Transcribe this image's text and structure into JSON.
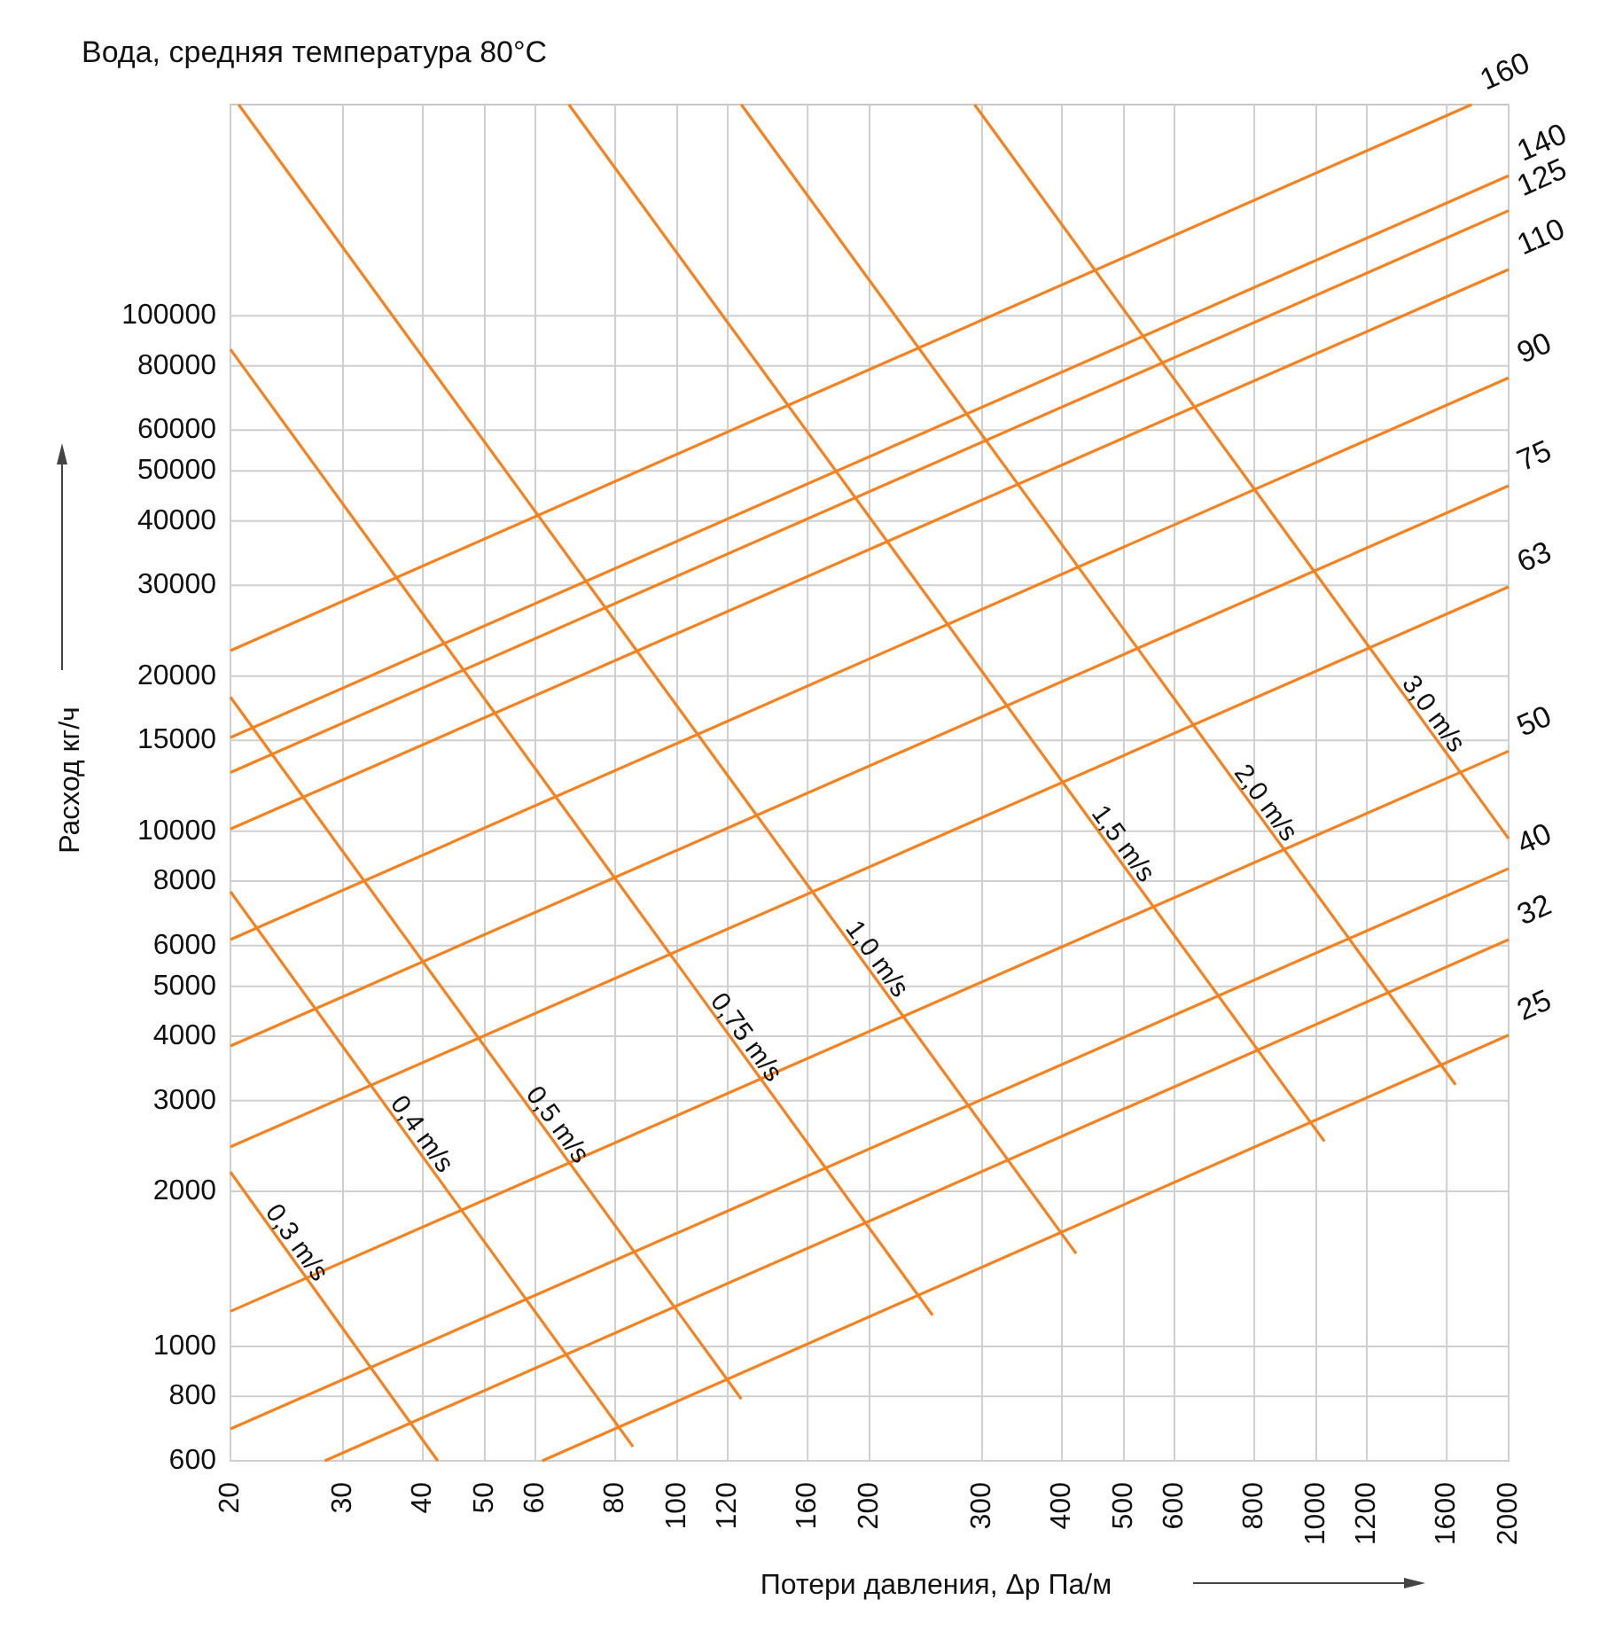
{
  "chart_data": {
    "type": "line",
    "title": "Вода, средняя температура 80°C",
    "xlabel": "Потери давления, Δp Па/м",
    "ylabel": "Расход кг/ч",
    "log": "xy",
    "grid": true,
    "marker": "none",
    "line_style": "solid",
    "xlim": [
      20,
      2000
    ],
    "ylim": [
      600,
      257000
    ],
    "xticks": [
      20,
      30,
      40,
      50,
      60,
      80,
      100,
      120,
      160,
      200,
      300,
      400,
      500,
      600,
      800,
      1000,
      1200,
      1600,
      2000
    ],
    "yticks": [
      600,
      800,
      1000,
      2000,
      3000,
      4000,
      5000,
      6000,
      8000,
      10000,
      15000,
      20000,
      30000,
      40000,
      50000,
      60000,
      80000,
      100000
    ],
    "series": [
      {
        "name": "160",
        "color": "#f5821f",
        "x": [
          20,
          1750
        ],
        "values": [
          22400,
          257000
        ]
      },
      {
        "name": "140",
        "color": "#f5821f",
        "x": [
          20,
          2000
        ],
        "values": [
          15200,
          187000
        ]
      },
      {
        "name": "125",
        "color": "#f5821f",
        "x": [
          20,
          2000
        ],
        "values": [
          13000,
          160000
        ]
      },
      {
        "name": "110",
        "color": "#f5821f",
        "x": [
          20,
          2000
        ],
        "values": [
          10100,
          123000
        ]
      },
      {
        "name": "90",
        "color": "#f5821f",
        "x": [
          20,
          2000
        ],
        "values": [
          6160,
          75800
        ]
      },
      {
        "name": "75",
        "color": "#f5821f",
        "x": [
          20,
          2000
        ],
        "values": [
          3830,
          46800
        ]
      },
      {
        "name": "63",
        "color": "#f5821f",
        "x": [
          20,
          2000
        ],
        "values": [
          2440,
          29800
        ]
      },
      {
        "name": "50",
        "color": "#f5821f",
        "x": [
          20,
          2000
        ],
        "values": [
          1170,
          14300
        ]
      },
      {
        "name": "40",
        "color": "#f5821f",
        "x": [
          20,
          2000
        ],
        "values": [
          692,
          8460
        ]
      },
      {
        "name": "32",
        "color": "#f5821f",
        "x": [
          28.1,
          2000
        ],
        "values": [
          600,
          6160
        ]
      },
      {
        "name": "25",
        "color": "#f5821f",
        "x": [
          61.5,
          2000
        ],
        "values": [
          600,
          4020
        ]
      },
      {
        "name": "0,3 m/s",
        "color": "#f5821f",
        "x": [
          20,
          42.2
        ],
        "values": [
          2180,
          600
        ]
      },
      {
        "name": "0,4 m/s",
        "color": "#f5821f",
        "x": [
          20,
          85.3
        ],
        "values": [
          7630,
          639
        ]
      },
      {
        "name": "0,5 m/s",
        "color": "#f5821f",
        "x": [
          20,
          126
        ],
        "values": [
          18200,
          791
        ]
      },
      {
        "name": "0,75 m/s",
        "color": "#f5821f",
        "x": [
          20,
          251
        ],
        "values": [
          86100,
          1150
        ]
      },
      {
        "name": "1,0 m/s",
        "color": "#f5821f",
        "x": [
          20.6,
          421
        ],
        "values": [
          257000,
          1515
        ]
      },
      {
        "name": "1,5 m/s",
        "color": "#f5821f",
        "x": [
          67.7,
          1030
        ],
        "values": [
          257000,
          2500
        ]
      },
      {
        "name": "2,0 m/s",
        "color": "#f5821f",
        "x": [
          126,
          1652
        ],
        "values": [
          257000,
          3220
        ]
      },
      {
        "name": "3,0 m/s",
        "color": "#f5821f",
        "x": [
          292,
          2000
        ],
        "values": [
          257000,
          9670
        ]
      }
    ]
  }
}
